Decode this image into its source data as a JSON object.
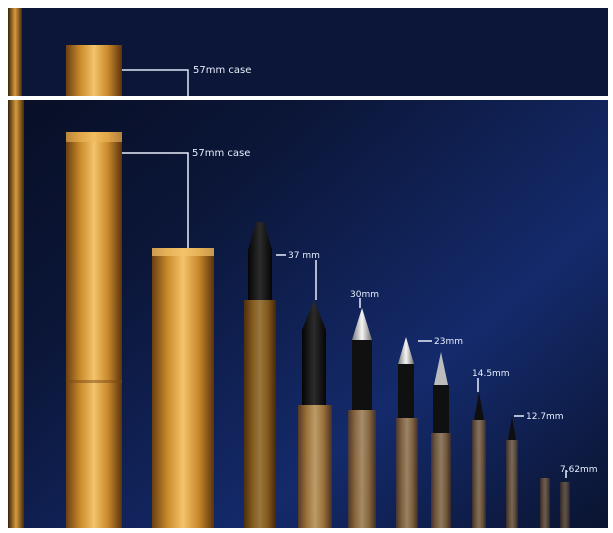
{
  "photo": {
    "top_strip_label": "57mm case",
    "labels": {
      "case_57mm": "57mm case",
      "mm_37": "37 mm",
      "mm_30": "30mm",
      "mm_23": "23mm",
      "mm_14_5": "14.5mm",
      "mm_12_7": "12.7mm",
      "mm_7_62": "7.62mm"
    },
    "colors": {
      "background_dark": "#0b1638",
      "background_mid": "#142a6b",
      "brass_light": "#f3c36b",
      "brass_mid": "#c98a2b",
      "brass_dark": "#6b3f12",
      "projectile_dark": "#121212",
      "projectile_silver": "#d9d9d9",
      "label_color": "#e8eefc"
    }
  }
}
